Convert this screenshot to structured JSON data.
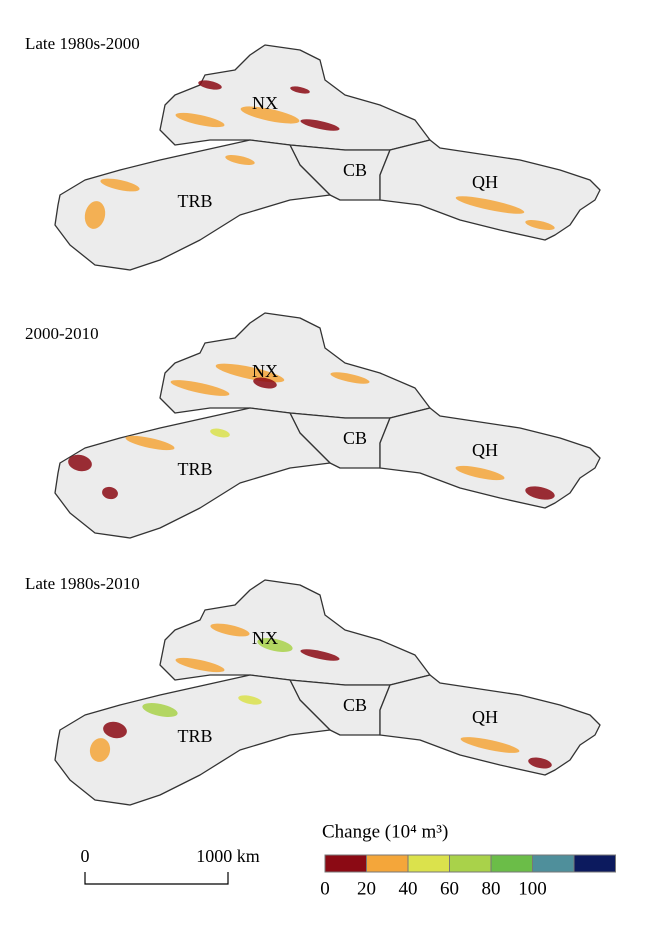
{
  "panels": [
    {
      "title": "Late 1980s-2000",
      "regions": [
        "NX",
        "CB",
        "TRB",
        "QH"
      ]
    },
    {
      "title": "2000-2010",
      "regions": [
        "NX",
        "CB",
        "TRB",
        "QH"
      ]
    },
    {
      "title": "Late 1980s-2010",
      "regions": [
        "NX",
        "CB",
        "TRB",
        "QH"
      ]
    }
  ],
  "scale_bar": {
    "start": "0",
    "end": "1000 km"
  },
  "legend": {
    "title": "Change (10⁴ m³)",
    "colors": [
      "#8b0a14",
      "#f4a63a",
      "#dbe24c",
      "#a9d24a",
      "#6bbd48",
      "#4f8f9b",
      "#0c1a5e"
    ],
    "ticks": [
      0,
      20,
      40,
      60,
      80,
      100
    ]
  }
}
